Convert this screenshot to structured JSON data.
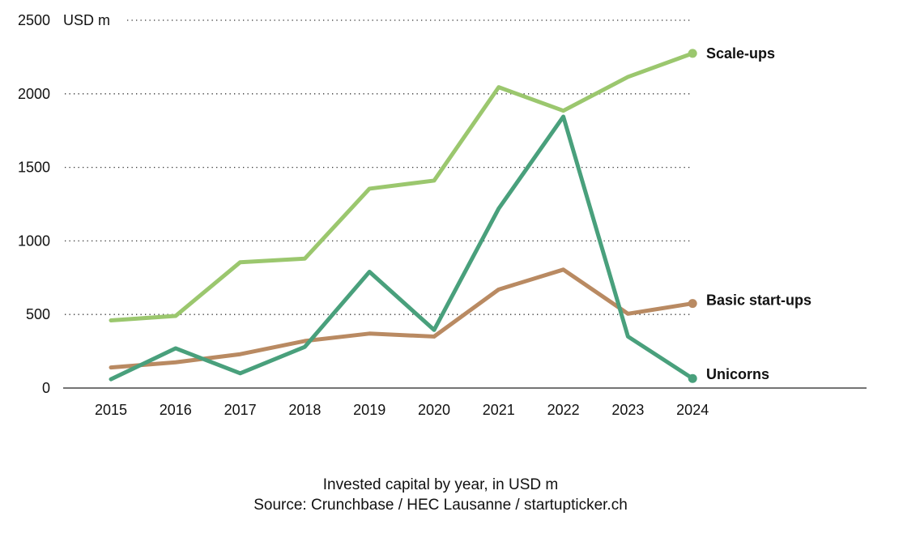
{
  "chart_data": {
    "type": "line",
    "title": "",
    "unit_label": "USD m",
    "xlabel": "",
    "ylabel": "USD m",
    "x": [
      "2015",
      "2016",
      "2017",
      "2018",
      "2019",
      "2020",
      "2021",
      "2022",
      "2023",
      "2024"
    ],
    "ylim": [
      0,
      2500
    ],
    "yticks": [
      0,
      500,
      1000,
      1500,
      2000,
      2500
    ],
    "ytick_labels": [
      "0",
      "500",
      "1000",
      "1500",
      "2000",
      "2500"
    ],
    "grid": "horizontal dotted",
    "legend": "end-of-line labels (right)",
    "series": [
      {
        "name": "Scale-ups",
        "color": "#9bc76e",
        "values": [
          460,
          490,
          855,
          880,
          1355,
          1410,
          2045,
          1885,
          2115,
          2275
        ]
      },
      {
        "name": "Basic start-ups",
        "color": "#b98a62",
        "values": [
          140,
          175,
          230,
          320,
          370,
          350,
          670,
          805,
          505,
          575
        ]
      },
      {
        "name": "Unicorns",
        "color": "#49a07c",
        "values": [
          60,
          270,
          100,
          280,
          790,
          395,
          1220,
          1845,
          350,
          65
        ]
      }
    ]
  },
  "caption": {
    "line1": "Invested capital by year, in USD m",
    "line2": "Source: Crunchbase / HEC Lausanne / startupticker.ch"
  }
}
